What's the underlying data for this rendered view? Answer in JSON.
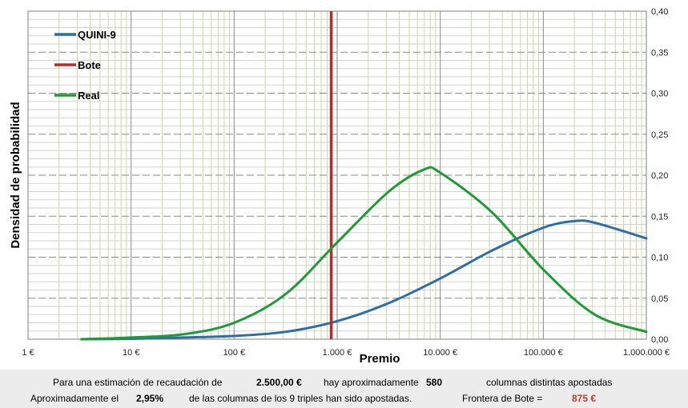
{
  "chart_data": {
    "type": "line",
    "title": "",
    "xlabel": "Premio",
    "ylabel": "Densidad de probabilidad",
    "x_scale": "log",
    "xlim": [
      1,
      1000000
    ],
    "ylim": [
      0,
      0.4
    ],
    "x_ticks": [
      {
        "value": 1,
        "label": "1 €"
      },
      {
        "value": 10,
        "label": "10 €"
      },
      {
        "value": 100,
        "label": "100 €"
      },
      {
        "value": 1000,
        "label": "1.000 €"
      },
      {
        "value": 10000,
        "label": "10.000 €"
      },
      {
        "value": 100000,
        "label": "100.000 €"
      },
      {
        "value": 1000000,
        "label": "1.000.000 €"
      }
    ],
    "y_ticks": [
      {
        "value": 0,
        "label": "0,00"
      },
      {
        "value": 0.05,
        "label": "0,05"
      },
      {
        "value": 0.1,
        "label": "0,10"
      },
      {
        "value": 0.15,
        "label": "0,15"
      },
      {
        "value": 0.2,
        "label": "0,20"
      },
      {
        "value": 0.25,
        "label": "0,25"
      },
      {
        "value": 0.3,
        "label": "0,30"
      },
      {
        "value": 0.35,
        "label": "0,35"
      },
      {
        "value": 0.4,
        "label": "0,40"
      }
    ],
    "grid": true,
    "legend_position": "top-left",
    "series": [
      {
        "name": "QUINI-9",
        "color": "#2d6ea8",
        "points": [
          [
            3.3,
            0.0
          ],
          [
            10,
            0.0005
          ],
          [
            32,
            0.002
          ],
          [
            100,
            0.004
          ],
          [
            316,
            0.009
          ],
          [
            1000,
            0.022
          ],
          [
            3162,
            0.044
          ],
          [
            10000,
            0.074
          ],
          [
            31623,
            0.108
          ],
          [
            100000,
            0.136
          ],
          [
            200000,
            0.144
          ],
          [
            316228,
            0.142
          ],
          [
            1000000,
            0.123
          ]
        ]
      },
      {
        "name": "Bote",
        "color": "#b22e2e",
        "vertical_x": 875
      },
      {
        "name": "Real",
        "color": "#1f9b35",
        "points": [
          [
            3.3,
            0.0
          ],
          [
            10,
            0.002
          ],
          [
            32,
            0.006
          ],
          [
            100,
            0.02
          ],
          [
            316,
            0.055
          ],
          [
            1000,
            0.118
          ],
          [
            3162,
            0.18
          ],
          [
            7000,
            0.207
          ],
          [
            10000,
            0.203
          ],
          [
            31623,
            0.155
          ],
          [
            100000,
            0.085
          ],
          [
            316228,
            0.03
          ],
          [
            1000000,
            0.009
          ]
        ]
      }
    ]
  },
  "footer": {
    "line1": {
      "text_a": "Para  una estimación de recaudación de",
      "value_recaudacion": "2.500,00 €",
      "text_b": "hay aproximadamente",
      "value_columnas": "580",
      "text_c": "columnas distintas apostadas"
    },
    "line2": {
      "text_a": "Aproximadamente el",
      "value_pct": "2,95%",
      "text_b": "de las columnas de los 9 triples han sido apostadas.",
      "text_c": "Frontera de Bote =",
      "value_bote": "875 €"
    }
  }
}
